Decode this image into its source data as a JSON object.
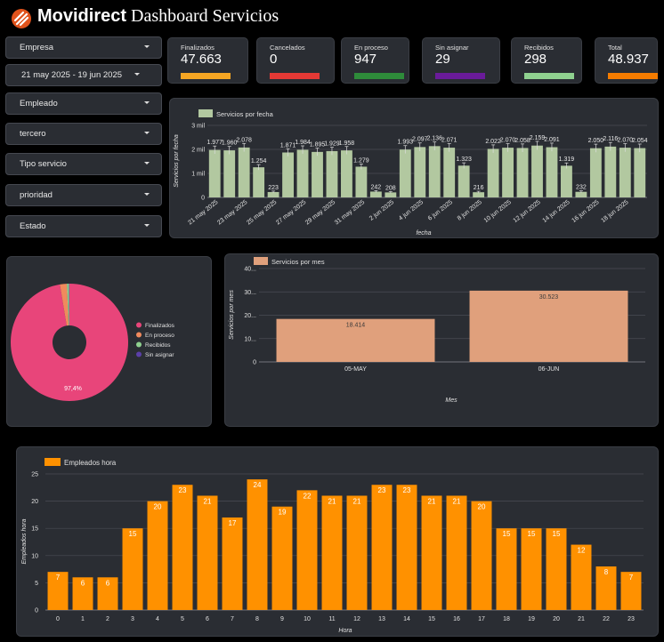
{
  "header": {
    "brand": "Movidirect",
    "title_rest": " Dashboard Servicios"
  },
  "filters": [
    {
      "label": "Empresa"
    },
    {
      "label": "21 may 2025 - 19 jun 2025"
    },
    {
      "label": "Empleado"
    },
    {
      "label": "tercero"
    },
    {
      "label": "Tipo servicio"
    },
    {
      "label": "prioridad"
    },
    {
      "label": "Estado"
    }
  ],
  "kpis": [
    {
      "label": "Finalizados",
      "value": "47.663",
      "color": "#f5a623"
    },
    {
      "label": "Cancelados",
      "value": "0",
      "color": "#e53935"
    },
    {
      "label": "En proceso",
      "value": "947",
      "color": "#2e8b3a"
    },
    {
      "label": "Sin asignar",
      "value": "29",
      "color": "#6a1b9a"
    },
    {
      "label": "Recibidos",
      "value": "298",
      "color": "#8fd18f"
    },
    {
      "label": "Total",
      "value": "48.937",
      "color": "#f57c00"
    }
  ],
  "chart_data": [
    {
      "type": "bar",
      "id": "servicios-por-fecha",
      "legend": "Servicios por fecha",
      "ylabel": "Servicios por fecha",
      "xlabel": "fecha",
      "color": "#b2c8a0",
      "ylim": [
        0,
        3000
      ],
      "yticks": [
        "0",
        "1 mil",
        "2 mil",
        "3 mil"
      ],
      "xticklabels": [
        "21 may 2025",
        "23 may 2025",
        "25 may 2025",
        "27 may 2025",
        "29 may 2025",
        "31 may 2025",
        "2 jun 2025",
        "4 jun 2025",
        "6 jun 2025",
        "8 jun 2025",
        "10 jun 2025",
        "12 jun 2025",
        "14 jun 2025",
        "16 jun 2025",
        "18 jun 2025"
      ],
      "values": [
        1977,
        1960,
        2078,
        1254,
        223,
        1871,
        1984,
        1895,
        1929,
        1958,
        1279,
        242,
        208,
        1993,
        2097,
        2136,
        2071,
        1323,
        216,
        2022,
        2070,
        2058,
        2159,
        2091,
        1319,
        232,
        2050,
        2116,
        2070,
        2054
      ],
      "data_labels": [
        "1.977",
        "1.960",
        "2.078",
        "1.254",
        "223",
        "1.871",
        "1.984",
        "1.895",
        "1.929",
        "1.958",
        "1.279",
        "242",
        "208",
        "1.993",
        "2.097",
        "2.136",
        "2.071",
        "1.323",
        "216",
        "2.022",
        "2.070",
        "2.058",
        "2.159",
        "2.091",
        "1.319",
        "232",
        "2.050",
        "2.116",
        "2.070",
        "2.054"
      ],
      "error_bars": true
    },
    {
      "type": "pie",
      "id": "estado-donut",
      "labels": [
        "Finalizados",
        "En proceso",
        "Recibidos",
        "Sin asignar"
      ],
      "values": [
        97.4,
        1.9,
        0.6,
        0.1
      ],
      "colors": [
        "#e8457a",
        "#f08a5d",
        "#8fd18f",
        "#5b3fa8"
      ],
      "data_labels": [
        "97,4%"
      ],
      "legend_position": "right"
    },
    {
      "type": "bar",
      "id": "servicios-por-mes",
      "legend": "Servicios por mes",
      "ylabel": "Servicios por mes",
      "xlabel": "Mes",
      "color": "#e0a07c",
      "ylim": [
        0,
        40
      ],
      "yticks": [
        "0",
        "10...",
        "20...",
        "30...",
        "40..."
      ],
      "categories": [
        "05-MAY",
        "06-JUN"
      ],
      "values": [
        18.414,
        30.523
      ],
      "data_labels": [
        "18.414",
        "30.523"
      ]
    },
    {
      "type": "bar",
      "id": "empleados-hora",
      "legend": "Empleados hora",
      "ylabel": "Empleados hora",
      "xlabel": "Hora",
      "color": "#ff9100",
      "ylim": [
        0,
        25
      ],
      "yticks": [
        "0",
        "5",
        "10",
        "15",
        "20",
        "25"
      ],
      "categories": [
        "0",
        "1",
        "2",
        "3",
        "4",
        "5",
        "6",
        "7",
        "8",
        "9",
        "10",
        "11",
        "12",
        "13",
        "14",
        "15",
        "16",
        "17",
        "18",
        "19",
        "20",
        "21",
        "22",
        "23"
      ],
      "values": [
        7,
        6,
        6,
        15,
        20,
        23,
        21,
        17,
        24,
        19,
        22,
        21,
        21,
        23,
        23,
        21,
        21,
        20,
        15,
        15,
        15,
        12,
        8,
        7
      ]
    }
  ]
}
